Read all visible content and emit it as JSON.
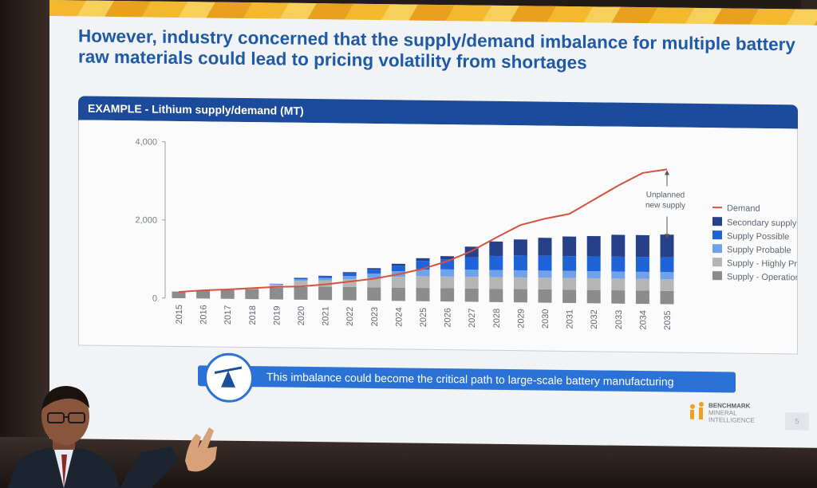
{
  "slide": {
    "headline": "However, industry concerned that the supply/demand imbalance for multiple battery raw materials could lead to pricing volatility from shortages",
    "panel_title": "EXAMPLE - Lithium supply/demand (MT)",
    "callout": "This imbalance could become the critical path to large-scale battery manufacturing",
    "logo": {
      "brand": "BENCHMARK",
      "line2": "MINERAL",
      "line3": "INTELLIGENCE"
    },
    "page_number": "5",
    "colors": {
      "headline": "#1f5aa6",
      "panel_bar": "#1d4b9b",
      "callout": "#2b72d6",
      "demand_line": "#d4533f"
    },
    "icons": {
      "callout_icon": "balance-scale-icon",
      "logo_icon": "benchmark-logo-icon"
    }
  },
  "chart_data": {
    "type": "bar",
    "stacked": true,
    "title": "EXAMPLE - Lithium supply/demand (MT)",
    "categories": [
      "2015",
      "2016",
      "2017",
      "2018",
      "2019",
      "2020",
      "2021",
      "2022",
      "2023",
      "2024",
      "2025",
      "2026",
      "2027",
      "2028",
      "2029",
      "2030",
      "2031",
      "2032",
      "2033",
      "2034",
      "2035"
    ],
    "ylim": [
      0,
      4000
    ],
    "yticks": [
      0,
      2000,
      4000
    ],
    "ytick_labels": [
      "0",
      "2,000",
      "4,000"
    ],
    "grid": false,
    "legend_position": "right",
    "series": [
      {
        "name": "Supply - Operational",
        "color": "#8c8c8c",
        "values": [
          170,
          200,
          220,
          250,
          300,
          330,
          340,
          340,
          340,
          340,
          340,
          340,
          340,
          340,
          340,
          340,
          340,
          340,
          340,
          340,
          340
        ]
      },
      {
        "name": "Supply - Highly Probable",
        "color": "#b5b5b5",
        "values": [
          0,
          0,
          10,
          40,
          80,
          150,
          160,
          200,
          240,
          280,
          300,
          300,
          300,
          300,
          300,
          300,
          300,
          300,
          300,
          300,
          300
        ]
      },
      {
        "name": "Supply Probable",
        "color": "#6fa2ea",
        "values": [
          0,
          0,
          0,
          0,
          10,
          40,
          60,
          80,
          110,
          140,
          170,
          180,
          180,
          180,
          180,
          180,
          180,
          180,
          180,
          180,
          180
        ]
      },
      {
        "name": "Supply Possible",
        "color": "#1f63d9",
        "values": [
          0,
          0,
          0,
          0,
          10,
          30,
          40,
          70,
          100,
          140,
          220,
          260,
          320,
          360,
          380,
          380,
          380,
          380,
          380,
          380,
          380
        ]
      },
      {
        "name": "Secondary supply",
        "color": "#27408a",
        "values": [
          0,
          0,
          0,
          0,
          0,
          10,
          20,
          30,
          40,
          50,
          70,
          80,
          270,
          370,
          410,
          460,
          500,
          520,
          560,
          560,
          580
        ]
      }
    ],
    "line_series": [
      {
        "name": "Demand",
        "color": "#d4533f",
        "values": [
          160,
          210,
          240,
          280,
          320,
          340,
          400,
          480,
          560,
          680,
          830,
          1030,
          1300,
          1650,
          1980,
          2150,
          2280,
          2650,
          3020,
          3350,
          null
        ],
        "end_point": 3450
      }
    ],
    "annotations": [
      {
        "text": "Unplanned new supply",
        "lines": [
          "Unplanned",
          "new supply"
        ],
        "category": "2035"
      }
    ]
  }
}
